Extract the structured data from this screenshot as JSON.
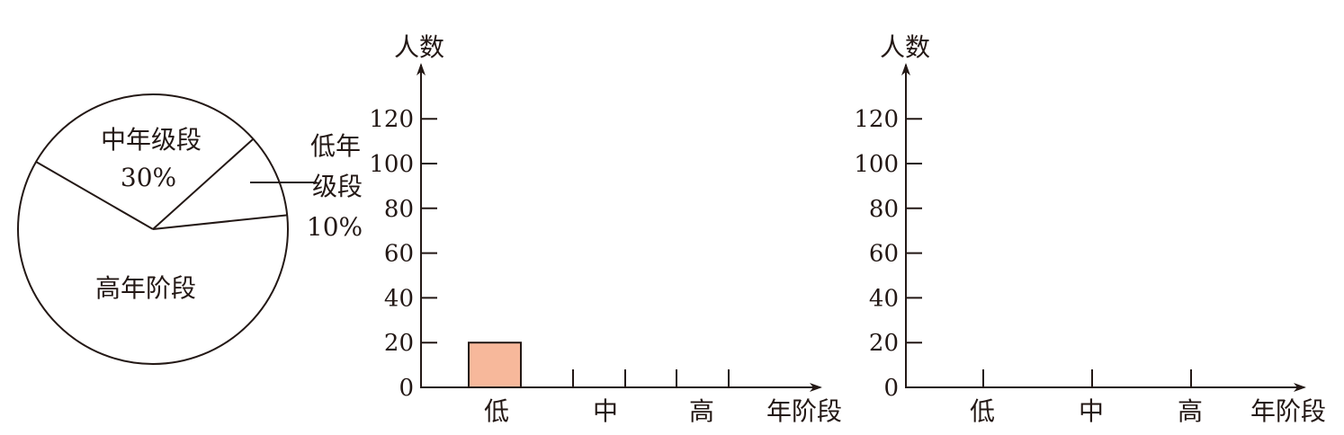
{
  "chart_data": [
    {
      "type": "pie",
      "slices": [
        {
          "label": "中年级段",
          "value": 30,
          "value_label": "30%"
        },
        {
          "label": "低年级段",
          "value": 10,
          "value_label": "10%"
        },
        {
          "label": "高年阶段",
          "value": 60,
          "value_label": ""
        }
      ],
      "label_lines": [
        "低年",
        "级段"
      ],
      "colors": {
        "stroke": "#231815",
        "fill": "#ffffff"
      }
    },
    {
      "type": "bar",
      "ylabel": "人数",
      "xlabel": "年阶段",
      "categories": [
        "低",
        "中",
        "高"
      ],
      "values": [
        20,
        null,
        null
      ],
      "ylim": [
        0,
        130
      ],
      "yticks": [
        0,
        20,
        40,
        60,
        80,
        100,
        120
      ],
      "colors": {
        "bar": "#f7b89b",
        "axis": "#231815"
      }
    },
    {
      "type": "bar",
      "ylabel": "人数",
      "xlabel": "年阶段",
      "categories": [
        "低",
        "中",
        "高"
      ],
      "values": [
        null,
        null,
        null
      ],
      "ylim": [
        0,
        130
      ],
      "yticks": [
        0,
        20,
        40,
        60,
        80,
        100,
        120
      ],
      "colors": {
        "bar": "#f7b89b",
        "axis": "#231815"
      }
    }
  ]
}
